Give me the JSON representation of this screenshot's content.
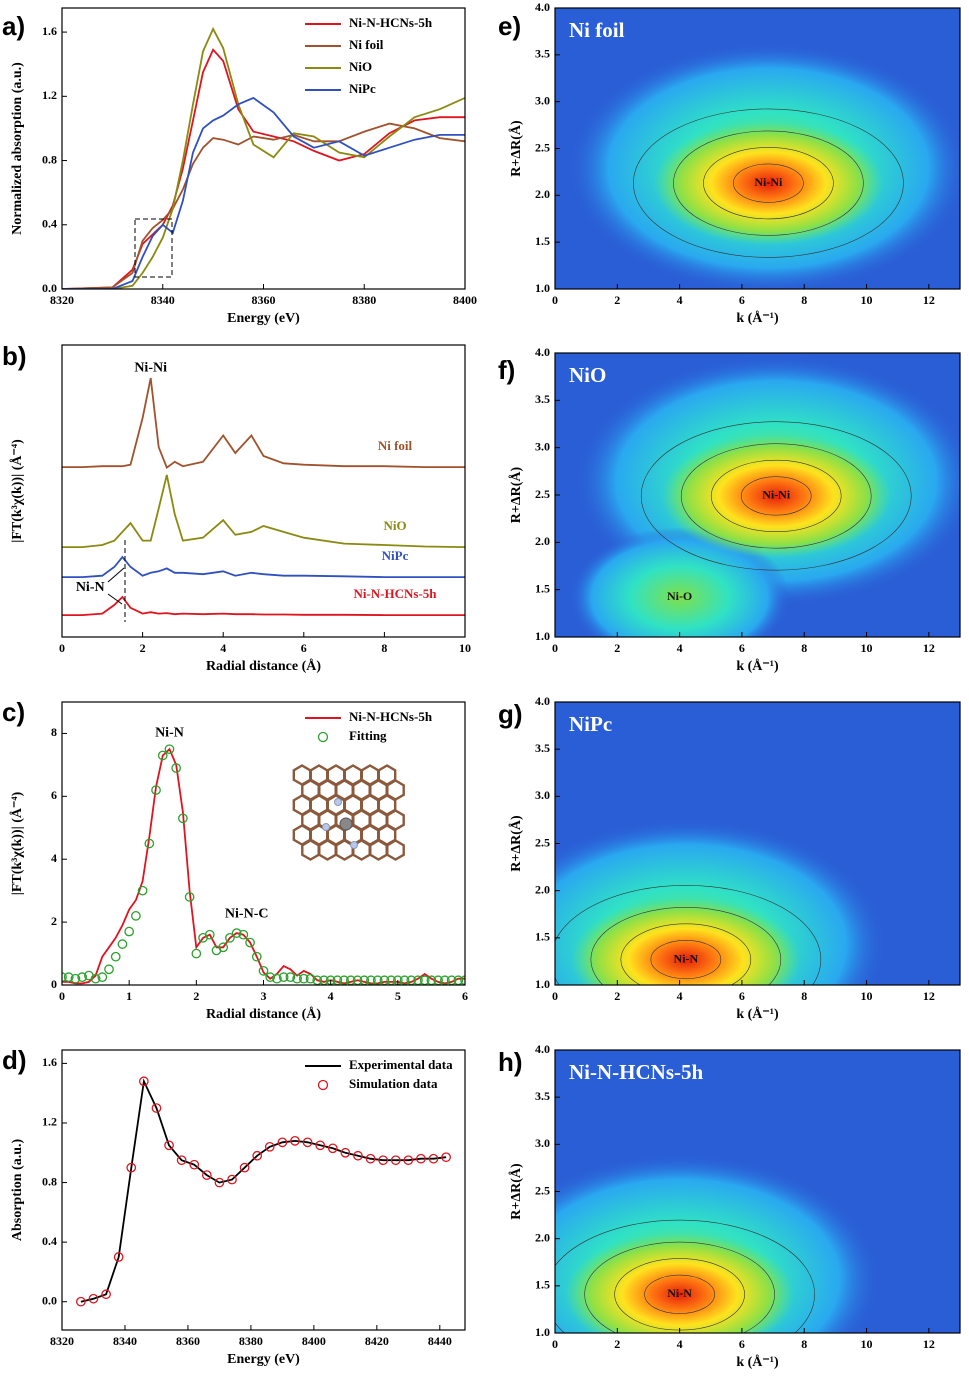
{
  "chart_data": [
    {
      "type": "line",
      "panel": "a)",
      "xlabel": "Energy (eV)",
      "ylabel": "Normalized absorption (a.u.)",
      "x": [
        8320,
        8330,
        8334,
        8336,
        8338,
        8340,
        8342,
        8344,
        8346,
        8348,
        8350,
        8352,
        8355,
        8358,
        8362,
        8366,
        8370,
        8375,
        8380,
        8385,
        8390,
        8395,
        8400
      ],
      "series": [
        {
          "name": "Ni-N-HCNs-5h",
          "color": "#e0141e",
          "values": [
            0,
            0.01,
            0.12,
            0.28,
            0.34,
            0.4,
            0.52,
            0.75,
            1.05,
            1.35,
            1.49,
            1.42,
            1.12,
            0.98,
            0.95,
            0.92,
            0.86,
            0.8,
            0.84,
            0.97,
            1.05,
            1.07,
            1.07
          ]
        },
        {
          "name": "Ni foil",
          "color": "#a0522d",
          "values": [
            0,
            0.01,
            0.1,
            0.3,
            0.38,
            0.43,
            0.5,
            0.62,
            0.78,
            0.88,
            0.94,
            0.93,
            0.9,
            0.95,
            0.93,
            0.96,
            0.92,
            0.92,
            0.98,
            1.03,
            1.0,
            0.94,
            0.92
          ]
        },
        {
          "name": "NiO",
          "color": "#8a8a10",
          "values": [
            0,
            0,
            0.02,
            0.1,
            0.2,
            0.32,
            0.5,
            0.8,
            1.15,
            1.48,
            1.62,
            1.5,
            1.15,
            0.9,
            0.82,
            0.97,
            0.95,
            0.85,
            0.82,
            0.95,
            1.07,
            1.12,
            1.19
          ]
        },
        {
          "name": "NiPc",
          "color": "#3050c0",
          "values": [
            0,
            0,
            0.05,
            0.2,
            0.33,
            0.4,
            0.35,
            0.55,
            0.85,
            1.0,
            1.05,
            1.08,
            1.15,
            1.19,
            1.1,
            0.95,
            0.88,
            0.92,
            0.83,
            0.88,
            0.93,
            0.96,
            0.96
          ]
        }
      ],
      "xlim": [
        8320,
        8400
      ],
      "xticks": [
        8320,
        8340,
        8360,
        8380,
        8400
      ],
      "ylim": [
        0,
        1.75
      ],
      "yticks": [
        {
          "value": 0,
          "label": "0.0"
        },
        {
          "value": 0.4,
          "label": "0.4"
        },
        {
          "value": 0.8,
          "label": "0.8"
        },
        {
          "value": 1.2,
          "label": "1.2"
        },
        {
          "value": 1.6,
          "label": "1.6"
        }
      ],
      "legend": "upper right"
    },
    {
      "type": "line",
      "panel": "b)",
      "xlabel": "Radial distance (Å)",
      "ylabel": "|FT(k³χ(k))| (Å⁻⁴)",
      "x": [
        0,
        0.5,
        1,
        1.3,
        1.5,
        1.7,
        2,
        2.2,
        2.4,
        2.6,
        2.8,
        3,
        3.5,
        4,
        4.3,
        4.7,
        5,
        5.5,
        6,
        7,
        8,
        9,
        10
      ],
      "series": [
        {
          "name": "Ni foil",
          "color": "#a0522d",
          "values": [
            5.82,
            5.82,
            5.85,
            5.85,
            5.85,
            5.9,
            7.5,
            8.87,
            6.5,
            5.8,
            6.0,
            5.85,
            6.0,
            6.9,
            6.3,
            6.9,
            6.2,
            5.95,
            5.9,
            5.85,
            5.85,
            5.82,
            5.82
          ]
        },
        {
          "name": "NiO",
          "color": "#8a8a10",
          "values": [
            3.08,
            3.08,
            3.15,
            3.3,
            3.6,
            3.9,
            3.3,
            3.3,
            4.4,
            5.55,
            4.2,
            3.3,
            3.4,
            4.0,
            3.5,
            3.6,
            3.8,
            3.6,
            3.4,
            3.2,
            3.15,
            3.1,
            3.08
          ]
        },
        {
          "name": "NiPc",
          "color": "#3050c0",
          "values": [
            2.05,
            2.05,
            2.1,
            2.4,
            2.74,
            2.4,
            2.1,
            2.2,
            2.25,
            2.35,
            2.2,
            2.2,
            2.15,
            2.25,
            2.1,
            2.2,
            2.15,
            2.1,
            2.1,
            2.08,
            2.05,
            2.05,
            2.05
          ]
        },
        {
          "name": "Ni-N-HCNs-5h",
          "color": "#e0141e",
          "values": [
            0.75,
            0.75,
            0.8,
            1.1,
            1.37,
            1.0,
            0.8,
            0.85,
            0.8,
            0.82,
            0.78,
            0.8,
            0.78,
            0.8,
            0.78,
            0.78,
            0.77,
            0.77,
            0.76,
            0.76,
            0.75,
            0.75,
            0.75
          ]
        }
      ],
      "annotations": [
        {
          "text": "Ni-Ni",
          "x": 2.2,
          "y": 9.2
        },
        {
          "text": "Ni-N",
          "x": 0.7,
          "y": 1.68
        }
      ],
      "xlim": [
        0,
        10
      ],
      "xticks": [
        0,
        2,
        4,
        6,
        8,
        10
      ],
      "ylim": [
        0,
        10
      ],
      "legend": "inline"
    },
    {
      "type": "line",
      "panel": "c)",
      "xlabel": "Radial distance (Å)",
      "ylabel": "|FT(k³χ(k))| (Å⁻⁴)",
      "x": [
        0,
        0.1,
        0.2,
        0.3,
        0.4,
        0.5,
        0.6,
        0.7,
        0.8,
        0.9,
        1,
        1.1,
        1.2,
        1.3,
        1.4,
        1.5,
        1.6,
        1.7,
        1.8,
        1.9,
        2,
        2.1,
        2.2,
        2.3,
        2.4,
        2.5,
        2.6,
        2.7,
        2.8,
        2.9,
        3,
        3.1,
        3.2,
        3.3,
        3.4,
        3.5,
        3.6,
        3.7,
        3.8,
        3.9,
        4,
        4.1,
        4.2,
        4.3,
        4.4,
        4.5,
        4.6,
        4.7,
        4.8,
        4.9,
        5,
        5.1,
        5.2,
        5.3,
        5.4,
        5.5,
        5.6,
        5.7,
        5.8,
        5.9,
        6
      ],
      "series": [
        {
          "name": "Ni-N-HCNs-5h",
          "color": "#e0141e",
          "marker": "line",
          "values": [
            0.1,
            0.1,
            0.05,
            0.05,
            0.1,
            0.3,
            0.9,
            1.2,
            1.5,
            1.9,
            2.4,
            2.7,
            3.3,
            4.7,
            6.3,
            7.3,
            7.5,
            7.0,
            5.5,
            3.0,
            1.2,
            1.5,
            1.6,
            1.2,
            1.2,
            1.5,
            1.65,
            1.6,
            1.35,
            0.9,
            0.4,
            0.2,
            0.35,
            0.6,
            0.5,
            0.3,
            0.45,
            0.35,
            0.15,
            0.1,
            0.15,
            0.1,
            0.05,
            0.1,
            0.15,
            0.1,
            0.05,
            0.05,
            0.1,
            0.1,
            0.1,
            0.05,
            0.1,
            0.2,
            0.35,
            0.2,
            0.1,
            0.05,
            0.1,
            0.2,
            0.2
          ]
        },
        {
          "name": "Fitting",
          "color": "#2ca02c",
          "marker": "circle",
          "values": [
            0.25,
            0.25,
            0.2,
            0.25,
            0.3,
            0.2,
            0.25,
            0.5,
            0.9,
            1.3,
            1.7,
            2.2,
            3.0,
            4.5,
            6.2,
            7.3,
            7.5,
            6.9,
            5.3,
            2.8,
            1.0,
            1.5,
            1.6,
            1.1,
            1.2,
            1.5,
            1.65,
            1.6,
            1.35,
            0.9,
            0.45,
            0.25,
            0.2,
            0.25,
            0.25,
            0.2,
            0.2,
            0.2,
            0.15,
            0.15,
            0.15,
            0.15,
            0.15,
            0.15,
            0.15,
            0.15,
            0.15,
            0.15,
            0.15,
            0.15,
            0.15,
            0.15,
            0.15,
            0.15,
            0.15,
            0.15,
            0.15,
            0.15,
            0.15,
            0.15,
            0.15
          ]
        }
      ],
      "annotations": [
        {
          "text": "Ni-N",
          "x": 1.6,
          "y": 8.0
        },
        {
          "text": "Ni-N-C",
          "x": 2.75,
          "y": 2.25
        }
      ],
      "xlim": [
        0,
        6
      ],
      "xticks": [
        0,
        1,
        2,
        3,
        4,
        5,
        6
      ],
      "ylim": [
        0,
        9
      ],
      "yticks": [
        0,
        2,
        4,
        6,
        8
      ],
      "legend": "upper right"
    },
    {
      "type": "line",
      "panel": "d)",
      "xlabel": "Energy (eV)",
      "ylabel": "Absorption (a.u.)",
      "x": [
        8326,
        8330,
        8334,
        8338,
        8342,
        8346,
        8350,
        8354,
        8358,
        8362,
        8366,
        8370,
        8374,
        8378,
        8382,
        8386,
        8390,
        8394,
        8398,
        8402,
        8406,
        8410,
        8414,
        8418,
        8422,
        8426,
        8430,
        8434,
        8438,
        8442
      ],
      "series": [
        {
          "name": "Experimental data",
          "color": "#000000",
          "marker": "line",
          "values": [
            0,
            0.02,
            0.05,
            0.3,
            0.9,
            1.48,
            1.3,
            1.05,
            0.95,
            0.92,
            0.85,
            0.8,
            0.82,
            0.9,
            0.98,
            1.04,
            1.07,
            1.08,
            1.07,
            1.05,
            1.03,
            1.0,
            0.98,
            0.96,
            0.95,
            0.95,
            0.95,
            0.96,
            0.96,
            0.97
          ]
        },
        {
          "name": "Simulation data",
          "color": "#e0141e",
          "marker": "circle",
          "values": [
            0,
            0.02,
            0.05,
            0.3,
            0.9,
            1.48,
            1.3,
            1.05,
            0.95,
            0.92,
            0.85,
            0.8,
            0.82,
            0.9,
            0.98,
            1.04,
            1.07,
            1.08,
            1.07,
            1.05,
            1.03,
            1.0,
            0.98,
            0.96,
            0.95,
            0.95,
            0.95,
            0.96,
            0.96,
            0.97
          ]
        }
      ],
      "xlim": [
        8320,
        8448
      ],
      "xticks": [
        8320,
        8340,
        8360,
        8380,
        8400,
        8420,
        8440
      ],
      "ylim": [
        -0.19,
        1.69
      ],
      "yticks": [
        {
          "value": 0,
          "label": "0.0"
        },
        {
          "value": 0.4,
          "label": "0.4"
        },
        {
          "value": 0.8,
          "label": "0.8"
        },
        {
          "value": 1.2,
          "label": "1.2"
        },
        {
          "value": 1.6,
          "label": "1.6"
        }
      ],
      "legend": "upper right"
    },
    {
      "type": "contour",
      "panel": "e)",
      "title": "Ni foil",
      "xlabel": "k (Å⁻¹)",
      "ylabel": "R+ΔR(Å)",
      "annotations": [
        {
          "text": "Ni-Ni",
          "x": 6.85,
          "y": 2.13
        }
      ],
      "xlim": [
        0,
        13
      ],
      "xticks": [
        0,
        2,
        4,
        6,
        8,
        10,
        12
      ],
      "ylim": [
        1,
        4
      ],
      "yticks": [
        {
          "value": 1,
          "label": "1.0"
        },
        {
          "value": 1.5,
          "label": "1.5"
        },
        {
          "value": 2,
          "label": "2.0"
        },
        {
          "value": 2.5,
          "label": "2.5"
        },
        {
          "value": 3,
          "label": "3.0"
        },
        {
          "value": 3.5,
          "label": "3.5"
        },
        {
          "value": 4,
          "label": "4.0"
        }
      ]
    },
    {
      "type": "contour",
      "panel": "f)",
      "title": "NiO",
      "xlabel": "k (Å⁻¹)",
      "ylabel": "R+ΔR(Å)",
      "annotations": [
        {
          "text": "Ni-Ni",
          "x": 7.1,
          "y": 2.49
        },
        {
          "text": "Ni-O",
          "x": 4.0,
          "y": 1.42
        }
      ],
      "xlim": [
        0,
        13
      ],
      "xticks": [
        0,
        2,
        4,
        6,
        8,
        10,
        12
      ],
      "ylim": [
        1,
        4
      ],
      "yticks": [
        {
          "value": 1,
          "label": "1.0"
        },
        {
          "value": 1.5,
          "label": "1.5"
        },
        {
          "value": 2,
          "label": "2.0"
        },
        {
          "value": 2.5,
          "label": "2.5"
        },
        {
          "value": 3,
          "label": "3.0"
        },
        {
          "value": 3.5,
          "label": "3.5"
        },
        {
          "value": 4,
          "label": "4.0"
        }
      ]
    },
    {
      "type": "contour",
      "panel": "g)",
      "title": "NiPc",
      "xlabel": "k (Å⁻¹)",
      "ylabel": "R+ΔR(Å)",
      "annotations": [
        {
          "text": "Ni-N",
          "x": 4.2,
          "y": 1.27
        }
      ],
      "xlim": [
        0,
        13
      ],
      "xticks": [
        0,
        2,
        4,
        6,
        8,
        10,
        12
      ],
      "ylim": [
        1,
        4
      ],
      "yticks": [
        {
          "value": 1,
          "label": "1.0"
        },
        {
          "value": 1.5,
          "label": "1.5"
        },
        {
          "value": 2,
          "label": "2.0"
        },
        {
          "value": 2.5,
          "label": "2.5"
        },
        {
          "value": 3,
          "label": "3.0"
        },
        {
          "value": 3.5,
          "label": "3.5"
        },
        {
          "value": 4,
          "label": "4.0"
        }
      ]
    },
    {
      "type": "contour",
      "panel": "h)",
      "title": "Ni-N-HCNs-5h",
      "xlabel": "k (Å⁻¹)",
      "ylabel": "R+ΔR(Å)",
      "annotations": [
        {
          "text": "Ni-N",
          "x": 4.0,
          "y": 1.41
        }
      ],
      "xlim": [
        0,
        13
      ],
      "xticks": [
        0,
        2,
        4,
        6,
        8,
        10,
        12
      ],
      "ylim": [
        1,
        4
      ],
      "yticks": [
        {
          "value": 1,
          "label": "1.0"
        },
        {
          "value": 1.5,
          "label": "1.5"
        },
        {
          "value": 2,
          "label": "2.0"
        },
        {
          "value": 2.5,
          "label": "2.5"
        },
        {
          "value": 3,
          "label": "3.0"
        },
        {
          "value": 3.5,
          "label": "3.5"
        },
        {
          "value": 4,
          "label": "4.0"
        }
      ]
    }
  ]
}
